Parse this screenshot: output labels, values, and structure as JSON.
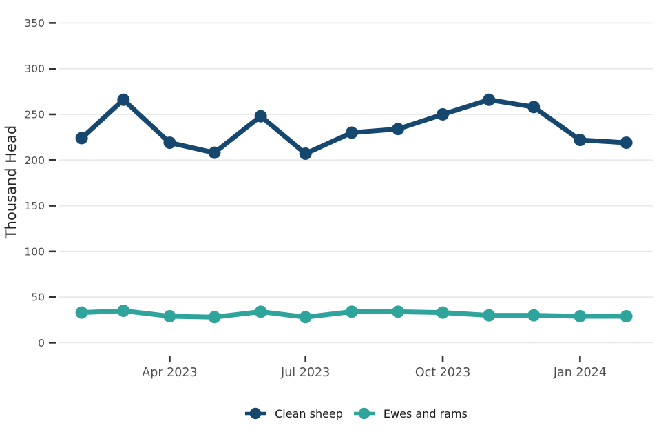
{
  "chart_data": {
    "type": "line",
    "title": "",
    "ylabel": "Thousand Head",
    "xlabel": "",
    "categories": [
      "2023-02",
      "2023-03",
      "2023-04",
      "2023-05",
      "2023-06",
      "2023-07",
      "2023-08",
      "2023-09",
      "2023-10",
      "2023-11",
      "2023-12",
      "2024-01",
      "2024-02"
    ],
    "series": [
      {
        "name": "Clean sheep",
        "color": "#16476F",
        "values": [
          224,
          266,
          219,
          208,
          248,
          207,
          230,
          234,
          250,
          266,
          258,
          222,
          219
        ]
      },
      {
        "name": "Ewes and rams",
        "color": "#2EA49C",
        "values": [
          33,
          35,
          29,
          28,
          34,
          28,
          34,
          34,
          33,
          30,
          30,
          29,
          29
        ]
      }
    ],
    "y_axis": {
      "ticks": [
        0,
        50,
        100,
        150,
        200,
        250,
        300,
        350
      ],
      "range": [
        0,
        364
      ]
    },
    "x_axis": {
      "ticks": [
        {
          "label": "Apr 2023",
          "month": "2023-04"
        },
        {
          "label": "Jul 2023",
          "month": "2023-07"
        },
        {
          "label": "Oct 2023",
          "month": "2023-10"
        },
        {
          "label": "Jan 2024",
          "month": "2024-01"
        }
      ]
    },
    "legend": {
      "position": "bottom-center"
    },
    "grid": {
      "horizontal": true,
      "vertical": false,
      "color": "#e8e8e8"
    },
    "style": {
      "tick_mark_color": "#333333",
      "axis_text_color": "#4d4d4d",
      "axis_title_color": "#262626",
      "legend_text_color": "#1a1a1a",
      "background": "#ffffff"
    }
  }
}
